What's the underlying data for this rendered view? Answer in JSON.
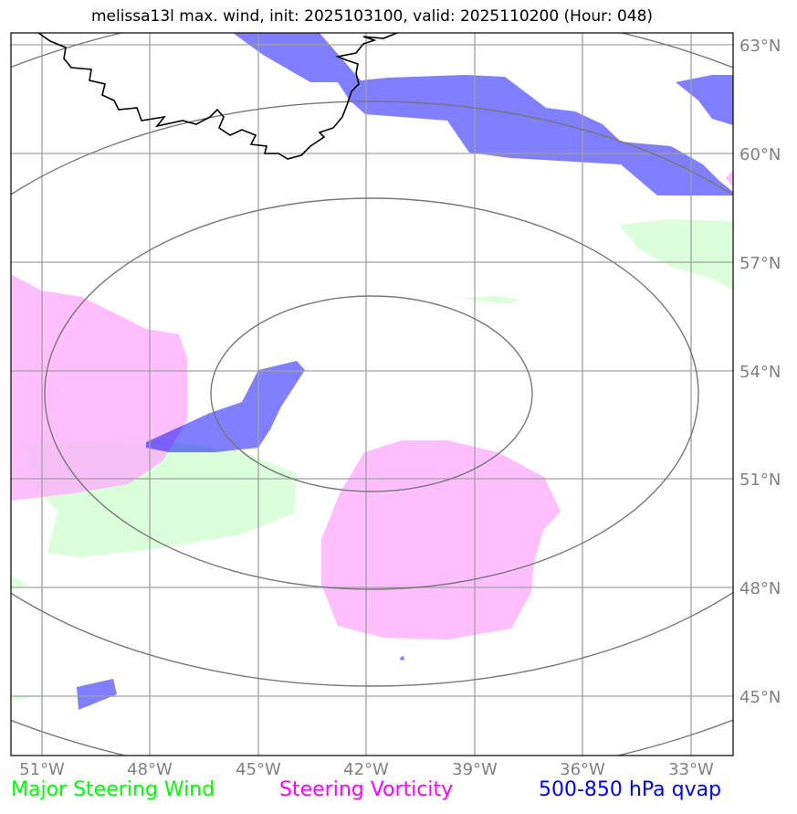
{
  "title": "melissa13l max. wind, init: 2025103100, valid: 2025110200 (Hour: 048)",
  "map": {
    "lat_labels": [
      "63°N",
      "60°N",
      "57°N",
      "54°N",
      "51°N",
      "48°N",
      "45°N"
    ],
    "lon_labels": [
      "51°W",
      "48°W",
      "45°W",
      "42°W",
      "39°W",
      "36°W",
      "33°W"
    ],
    "colors": {
      "wind": "#00ff00",
      "vorticity": "#ff00ff",
      "qvap": "#0000ff",
      "grid": "#808080",
      "range_rings": "#777777",
      "coastline": "#000000"
    }
  },
  "legend": {
    "wind_label": "Major Steering Wind",
    "vorticity_label": "Steering Vorticity",
    "qvap_label": "500-850 hPa qvap"
  }
}
